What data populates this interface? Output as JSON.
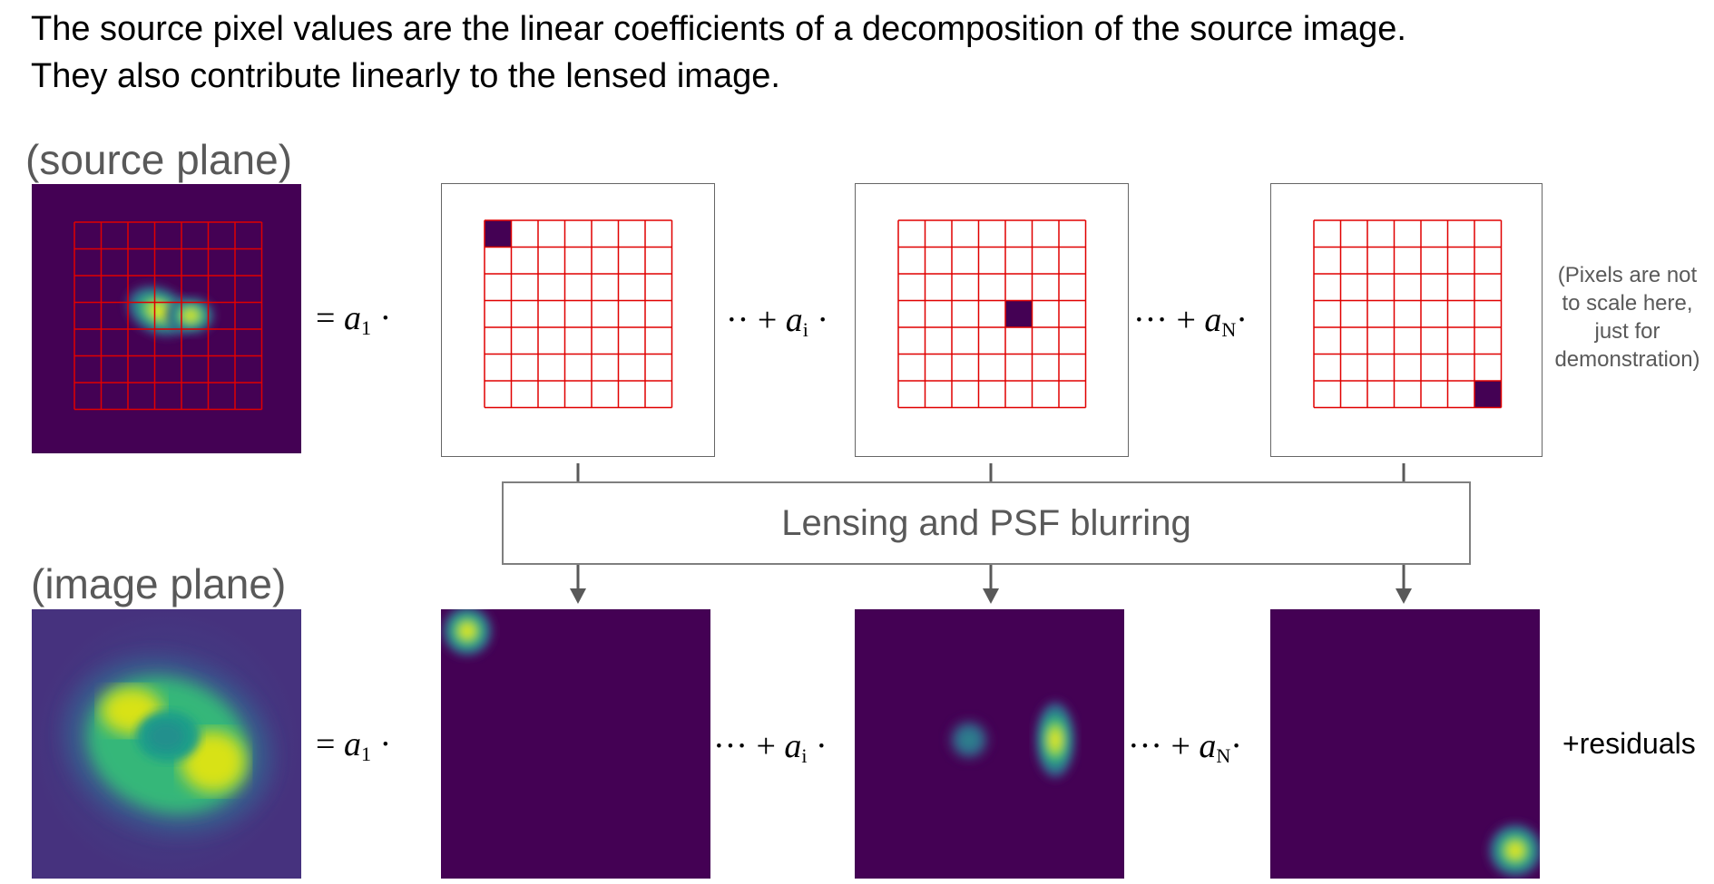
{
  "header": {
    "line1": "The source pixel values are the linear coefficients of a decomposition of the source image.",
    "line2": "They also contribute linearly to the lensed image."
  },
  "labels": {
    "source_plane": "(source plane)",
    "image_plane": "(image plane)"
  },
  "equation": {
    "equals": "=",
    "a1": "a",
    "a1_sub": "1",
    "dot": "·",
    "ellipsis_short": "··",
    "ellipsis": "···",
    "plus": "+",
    "ai": "a",
    "ai_sub": "i",
    "aN": "a",
    "aN_sub": "N"
  },
  "process_box": "Lensing and PSF blurring",
  "note": {
    "line1": "(Pixels are not",
    "line2": "to scale here,",
    "line3": "just for",
    "line4": "demonstration)"
  },
  "residuals": "+residuals",
  "colors": {
    "viridis_dark": "#440154",
    "grid_red": "#e00000",
    "text_gray": "#595959",
    "arrow_gray": "#595959"
  },
  "grid": {
    "rows": 7,
    "cols": 7
  },
  "basis_cells": [
    {
      "term": "a1",
      "row": 0,
      "col": 0
    },
    {
      "term": "ai",
      "row": 3,
      "col": 4
    },
    {
      "term": "aN",
      "row": 6,
      "col": 6
    }
  ]
}
